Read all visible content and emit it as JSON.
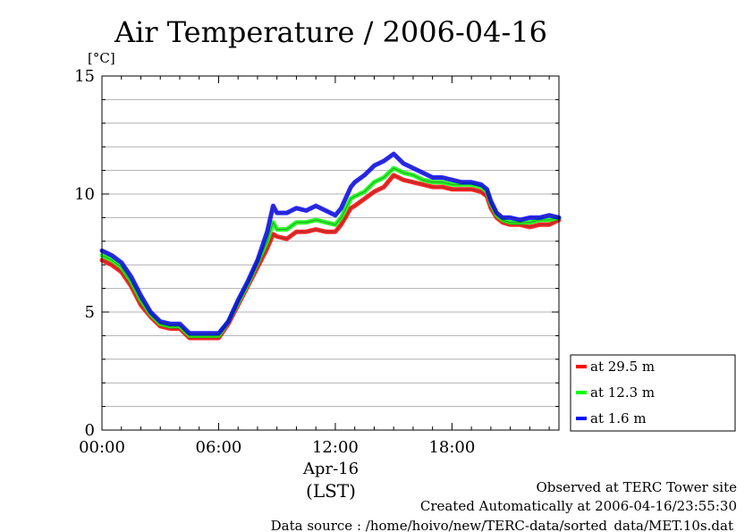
{
  "chart_data": {
    "type": "line",
    "title": "Air Temperature / 2006-04-16",
    "yunit": "[°C]",
    "xlabel_date": "Apr-16",
    "xlabel_tz": "(LST)",
    "xlim_hours": [
      0,
      23.5
    ],
    "ylim": [
      0,
      15
    ],
    "yticks": [
      0,
      5,
      10,
      15
    ],
    "ytick_labels": [
      "0",
      "5",
      "10",
      "15"
    ],
    "xticks_hours": [
      0,
      6,
      12,
      18
    ],
    "xtick_labels": [
      "00:00",
      "06:00",
      "12:00",
      "18:00"
    ],
    "grid": true,
    "legend_position": "bottom-right-outside",
    "series": [
      {
        "name": "at 29.5 m",
        "color": "#ff0000",
        "x": [
          0,
          0.5,
          1,
          1.5,
          2,
          2.5,
          3,
          3.5,
          4,
          4.5,
          5,
          5.5,
          6,
          6.5,
          7,
          7.5,
          8,
          8.5,
          8.8,
          9,
          9.5,
          10,
          10.5,
          11,
          11.5,
          12,
          12.3,
          12.8,
          13,
          13.5,
          14,
          14.5,
          15,
          15.5,
          16,
          16.5,
          17,
          17.5,
          18,
          18.5,
          19,
          19.5,
          19.8,
          20,
          20.3,
          20.6,
          21,
          21.5,
          22,
          22.5,
          23,
          23.5
        ],
        "values": [
          7.2,
          7.0,
          6.7,
          6.1,
          5.3,
          4.8,
          4.4,
          4.3,
          4.3,
          3.9,
          3.9,
          3.9,
          3.9,
          4.5,
          5.3,
          6.1,
          6.9,
          7.7,
          8.3,
          8.2,
          8.1,
          8.4,
          8.4,
          8.5,
          8.4,
          8.4,
          8.7,
          9.4,
          9.5,
          9.8,
          10.1,
          10.3,
          10.8,
          10.6,
          10.5,
          10.4,
          10.3,
          10.3,
          10.2,
          10.2,
          10.2,
          10.1,
          9.9,
          9.4,
          9.0,
          8.8,
          8.7,
          8.7,
          8.6,
          8.7,
          8.7,
          8.9
        ]
      },
      {
        "name": "at 12.3 m",
        "color": "#00ff00",
        "x": [
          0,
          0.5,
          1,
          1.5,
          2,
          2.5,
          3,
          3.5,
          4,
          4.5,
          5,
          5.5,
          6,
          6.5,
          7,
          7.5,
          8,
          8.5,
          8.8,
          9,
          9.5,
          10,
          10.5,
          11,
          11.5,
          12,
          12.3,
          12.8,
          13,
          13.5,
          14,
          14.5,
          15,
          15.5,
          16,
          16.5,
          17,
          17.5,
          18,
          18.5,
          19,
          19.5,
          19.8,
          20,
          20.3,
          20.6,
          21,
          21.5,
          22,
          22.5,
          23,
          23.5
        ],
        "values": [
          7.4,
          7.2,
          6.9,
          6.3,
          5.5,
          4.9,
          4.5,
          4.4,
          4.4,
          4.0,
          4.0,
          4.0,
          4.0,
          4.6,
          5.4,
          6.2,
          7.1,
          8.0,
          8.8,
          8.5,
          8.5,
          8.8,
          8.8,
          8.9,
          8.8,
          8.7,
          9.0,
          9.8,
          9.9,
          10.1,
          10.5,
          10.7,
          11.1,
          10.9,
          10.8,
          10.6,
          10.5,
          10.5,
          10.4,
          10.4,
          10.4,
          10.3,
          10.1,
          9.6,
          9.1,
          8.9,
          8.8,
          8.8,
          8.8,
          8.9,
          8.9,
          9.0
        ]
      },
      {
        "name": "at 1.6 m",
        "color": "#0000ff",
        "x": [
          0,
          0.5,
          1,
          1.5,
          2,
          2.5,
          3,
          3.5,
          4,
          4.5,
          5,
          5.5,
          6,
          6.5,
          7,
          7.5,
          8,
          8.5,
          8.8,
          9,
          9.5,
          10,
          10.5,
          11,
          11.5,
          12,
          12.3,
          12.8,
          13,
          13.5,
          14,
          14.5,
          15,
          15.5,
          16,
          16.5,
          17,
          17.5,
          18,
          18.5,
          19,
          19.5,
          19.8,
          20,
          20.3,
          20.6,
          21,
          21.5,
          22,
          22.5,
          23,
          23.5
        ],
        "values": [
          7.6,
          7.4,
          7.1,
          6.5,
          5.7,
          5.0,
          4.6,
          4.5,
          4.5,
          4.1,
          4.1,
          4.1,
          4.1,
          4.6,
          5.5,
          6.3,
          7.2,
          8.4,
          9.5,
          9.2,
          9.2,
          9.4,
          9.3,
          9.5,
          9.3,
          9.1,
          9.4,
          10.3,
          10.5,
          10.8,
          11.2,
          11.4,
          11.7,
          11.3,
          11.1,
          10.9,
          10.7,
          10.7,
          10.6,
          10.5,
          10.5,
          10.4,
          10.2,
          9.7,
          9.2,
          9.0,
          9.0,
          8.9,
          9.0,
          9.0,
          9.1,
          9.0
        ]
      }
    ]
  },
  "footer": {
    "line1": "Observed at TERC Tower site",
    "line2": "Created Automatically at 2006-04-16/23:55:30",
    "line3": "Data source : /home/hoivo/new/TERC-data/sorted_data/MET.10s.dat"
  }
}
